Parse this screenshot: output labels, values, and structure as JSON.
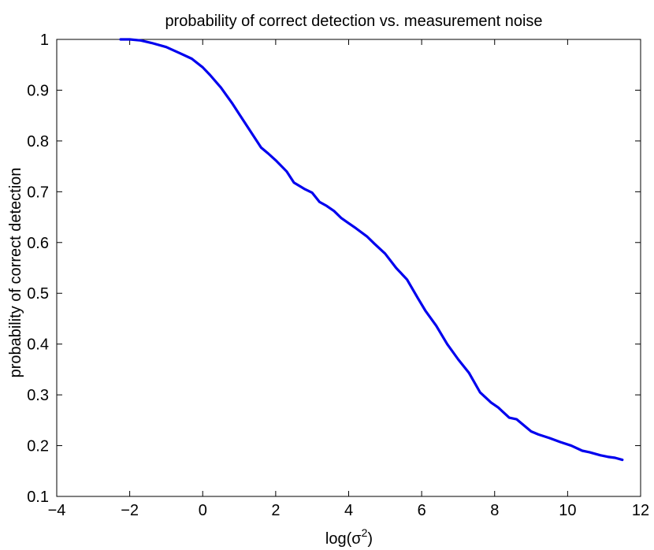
{
  "chart_data": {
    "type": "line",
    "title": "probability of correct detection vs. measurement noise",
    "xlabel": "log(σ²)",
    "xlabel_base": "log(σ",
    "xlabel_sup": "2",
    "xlabel_close": ")",
    "ylabel": "probability of correct detection",
    "xlim": [
      -4,
      12
    ],
    "ylim": [
      0.1,
      1
    ],
    "xticks": [
      -4,
      -2,
      0,
      2,
      4,
      6,
      8,
      10,
      12
    ],
    "xtick_labels": [
      "−4",
      "−2",
      "0",
      "2",
      "4",
      "6",
      "8",
      "10",
      "12"
    ],
    "yticks": [
      0.1,
      0.2,
      0.3,
      0.4,
      0.5,
      0.6,
      0.7,
      0.8,
      0.9,
      1
    ],
    "ytick_labels": [
      "0.1",
      "0.2",
      "0.3",
      "0.4",
      "0.5",
      "0.6",
      "0.7",
      "0.8",
      "0.9",
      "1"
    ],
    "grid": false,
    "series": [
      {
        "color": "#0000ee",
        "x": [
          -2.25,
          -2.0,
          -1.7,
          -1.4,
          -1.0,
          -0.6,
          -0.3,
          0.0,
          0.2,
          0.5,
          0.8,
          1.0,
          1.3,
          1.6,
          1.8,
          2.0,
          2.3,
          2.5,
          2.8,
          3.0,
          3.2,
          3.4,
          3.6,
          3.8,
          4.0,
          4.2,
          4.5,
          4.7,
          5.0,
          5.3,
          5.6,
          5.9,
          6.1,
          6.4,
          6.7,
          7.0,
          7.3,
          7.6,
          7.9,
          8.1,
          8.4,
          8.6,
          8.8,
          9.0,
          9.2,
          9.5,
          9.8,
          10.1,
          10.4,
          10.6,
          10.9,
          11.1,
          11.3,
          11.5
        ],
        "y": [
          1.0,
          1.0,
          0.998,
          0.993,
          0.985,
          0.972,
          0.962,
          0.945,
          0.93,
          0.905,
          0.875,
          0.853,
          0.82,
          0.787,
          0.775,
          0.762,
          0.74,
          0.718,
          0.705,
          0.698,
          0.68,
          0.672,
          0.662,
          0.648,
          0.638,
          0.628,
          0.612,
          0.598,
          0.578,
          0.55,
          0.527,
          0.49,
          0.466,
          0.436,
          0.4,
          0.37,
          0.343,
          0.305,
          0.285,
          0.275,
          0.255,
          0.252,
          0.24,
          0.228,
          0.222,
          0.215,
          0.207,
          0.2,
          0.19,
          0.187,
          0.181,
          0.178,
          0.176,
          0.172
        ]
      }
    ]
  }
}
